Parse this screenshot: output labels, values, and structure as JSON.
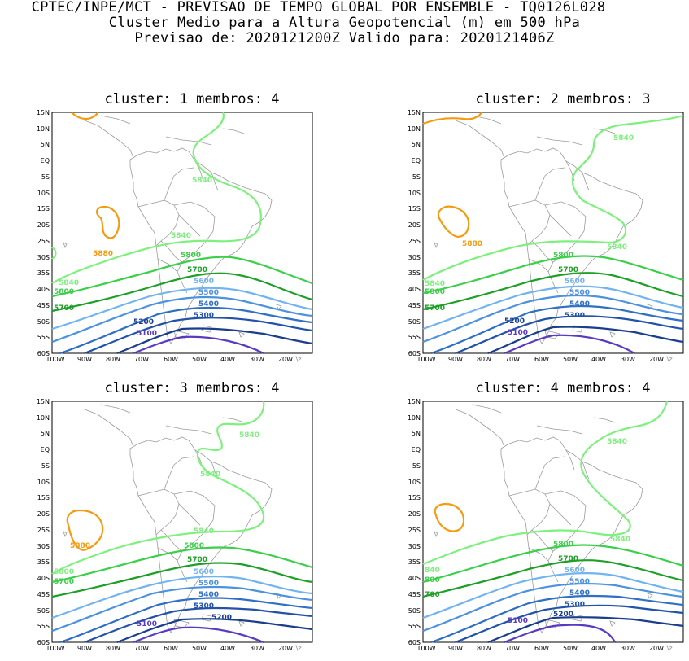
{
  "header": {
    "line1": "CPTEC/INPE/MCT - PREVISAO DE TEMPO GLOBAL POR ENSEMBLE - TQ0126L028",
    "line2": "Cluster Medio para a Altura Geopotencial (m) em 500 hPa",
    "line3": "Previsao de: 2020121200Z   Valido para: 2020121406Z"
  },
  "axes": {
    "lat_labels": [
      "15N",
      "10N",
      "5N",
      "EQ",
      "5S",
      "10S",
      "15S",
      "20S",
      "25S",
      "30S",
      "35S",
      "40S",
      "45S",
      "50S",
      "55S",
      "60S"
    ],
    "lon_labels": [
      "100W",
      "90W",
      "80W",
      "70W",
      "60W",
      "50W",
      "40W",
      "30W",
      "20W"
    ]
  },
  "colors": {
    "c5880": "#f39c12",
    "c5840": "#7ef07e",
    "c5800": "#3ccf4a",
    "c5700": "#1ea028",
    "c5600": "#72b4f0",
    "c5500": "#4c92dc",
    "c5400": "#2f6fc4",
    "c5300": "#2253a8",
    "c5200": "#1a3d8c",
    "c5100": "#5a3ac0",
    "coast": "#9a9a9a"
  },
  "panels": [
    {
      "title": "cluster: 1   membros: 4",
      "labels": [
        "5880",
        "5840",
        "5840",
        "5840",
        "5800",
        "5800",
        "5700",
        "5700",
        "5600",
        "5500",
        "5400",
        "5300",
        "5200",
        "5100"
      ]
    },
    {
      "title": "cluster: 2   membros: 3",
      "labels": [
        "5880",
        "5840",
        "5840",
        "5840",
        "5800",
        "5800",
        "5700",
        "5700",
        "5600",
        "5500",
        "5400",
        "5300",
        "5200",
        "5100"
      ]
    },
    {
      "title": "cluster: 3   membros: 4",
      "labels": [
        "5880",
        "5840",
        "5840",
        "5840",
        "5800",
        "5800",
        "5700",
        "5700",
        "5600",
        "5500",
        "5400",
        "5300",
        "5200",
        "5100"
      ]
    },
    {
      "title": "cluster: 4   membros: 4",
      "labels": [
        "5840",
        "5840",
        "840",
        "5800",
        "800",
        "5700",
        "700",
        "5600",
        "5500",
        "5400",
        "5300",
        "5200",
        "5100"
      ]
    }
  ]
}
